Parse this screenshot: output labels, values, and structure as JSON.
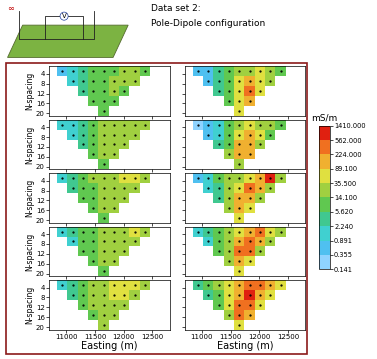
{
  "header": {
    "title": "Data set 2:",
    "subtitle": "Pole-Dipole configuration",
    "icon_labels": [
      "∞",
      "V"
    ]
  },
  "chart_data": {
    "type": "heatmap",
    "x_label": "Easting (m)",
    "y_label": "N-spacing",
    "xlim": [
      10700,
      12800
    ],
    "xticks": [
      11000,
      11500,
      12000,
      12500
    ],
    "ylim": [
      21,
      1
    ],
    "yticks": [
      4,
      8,
      12,
      16,
      20
    ],
    "x_edges": [
      10840,
      11020,
      11200,
      11380,
      11560,
      11740,
      11920,
      12100,
      12280,
      12460
    ],
    "y_edges": [
      1,
      5,
      9,
      13,
      17,
      21
    ],
    "panels": [
      {
        "cells": [
          [
            0.5,
            1.5,
            4,
            8,
            10,
            12,
            20,
            15,
            12
          ],
          [
            null,
            1,
            3,
            7,
            10,
            15,
            20,
            15,
            null
          ],
          [
            null,
            null,
            4,
            8,
            12,
            15,
            12,
            null,
            null
          ],
          [
            null,
            null,
            null,
            8,
            12,
            10,
            null,
            null,
            null
          ],
          [
            null,
            null,
            null,
            null,
            10,
            null,
            null,
            null,
            null
          ]
        ]
      },
      {
        "cells": [
          [
            0.4,
            0.8,
            3,
            8,
            15,
            30,
            40,
            20,
            10
          ],
          [
            null,
            0.6,
            3,
            10,
            40,
            200,
            60,
            15,
            null
          ],
          [
            null,
            null,
            3,
            10,
            80,
            300,
            40,
            null,
            null
          ],
          [
            null,
            null,
            null,
            10,
            80,
            200,
            null,
            null,
            null
          ],
          [
            null,
            null,
            null,
            null,
            40,
            null,
            null,
            null,
            null
          ]
        ]
      },
      {
        "cells": [
          [
            1,
            2,
            5,
            10,
            15,
            20,
            25,
            30,
            20
          ],
          [
            null,
            1.5,
            4,
            10,
            15,
            20,
            25,
            20,
            null
          ],
          [
            null,
            null,
            5,
            10,
            15,
            20,
            15,
            null,
            null
          ],
          [
            null,
            null,
            null,
            10,
            15,
            15,
            null,
            null,
            null
          ],
          [
            null,
            null,
            null,
            null,
            12,
            null,
            null,
            null,
            null
          ]
        ]
      },
      {
        "cells": [
          [
            0.3,
            0.5,
            2,
            8,
            20,
            40,
            30,
            15,
            10
          ],
          [
            null,
            0.4,
            2,
            10,
            50,
            150,
            40,
            12,
            null
          ],
          [
            null,
            null,
            3,
            12,
            150,
            200,
            30,
            null,
            null
          ],
          [
            null,
            null,
            null,
            15,
            100,
            100,
            null,
            null,
            null
          ],
          [
            null,
            null,
            null,
            null,
            30,
            null,
            null,
            null,
            null
          ]
        ]
      },
      {
        "cells": [
          [
            2,
            5,
            10,
            15,
            25,
            30,
            40,
            80,
            30
          ],
          [
            null,
            3,
            8,
            12,
            20,
            30,
            35,
            25,
            null
          ],
          [
            null,
            null,
            6,
            12,
            20,
            25,
            20,
            null,
            null
          ],
          [
            null,
            null,
            null,
            10,
            15,
            15,
            null,
            null,
            null
          ],
          [
            null,
            null,
            null,
            null,
            12,
            null,
            null,
            null,
            null
          ]
        ]
      },
      {
        "cells": [
          [
            0.8,
            2,
            6,
            15,
            30,
            60,
            200,
            600,
            30
          ],
          [
            null,
            1.5,
            5,
            15,
            80,
            300,
            100,
            20,
            null
          ],
          [
            null,
            null,
            5,
            30,
            200,
            200,
            25,
            null,
            null
          ],
          [
            null,
            null,
            null,
            20,
            150,
            60,
            null,
            null,
            null
          ],
          [
            null,
            null,
            null,
            null,
            40,
            null,
            null,
            null,
            null
          ]
        ]
      },
      {
        "cells": [
          [
            1.5,
            3,
            8,
            12,
            20,
            30,
            35,
            40,
            25
          ],
          [
            null,
            2,
            6,
            10,
            20,
            30,
            30,
            20,
            null
          ],
          [
            null,
            null,
            6,
            12,
            20,
            25,
            20,
            null,
            null
          ],
          [
            null,
            null,
            null,
            10,
            15,
            15,
            null,
            null,
            null
          ],
          [
            null,
            null,
            null,
            null,
            12,
            null,
            null,
            null,
            null
          ]
        ]
      },
      {
        "cells": [
          [
            1,
            3,
            8,
            20,
            40,
            100,
            300,
            40,
            15
          ],
          [
            null,
            2,
            8,
            20,
            100,
            400,
            100,
            20,
            null
          ],
          [
            null,
            null,
            6,
            30,
            300,
            300,
            30,
            null,
            null
          ],
          [
            null,
            null,
            null,
            20,
            200,
            80,
            null,
            null,
            null
          ],
          [
            null,
            null,
            null,
            null,
            40,
            null,
            null,
            null,
            null
          ]
        ]
      },
      {
        "cells": [
          [
            2,
            5,
            10,
            20,
            30,
            40,
            80,
            60,
            30
          ],
          [
            null,
            3,
            8,
            15,
            25,
            40,
            40,
            30,
            null
          ],
          [
            null,
            null,
            8,
            15,
            25,
            30,
            20,
            null,
            null
          ],
          [
            null,
            null,
            null,
            12,
            20,
            15,
            null,
            null,
            null
          ],
          [
            null,
            null,
            null,
            null,
            15,
            null,
            null,
            null,
            null
          ]
        ]
      },
      {
        "cells": [
          [
            3,
            8,
            20,
            40,
            100,
            300,
            500,
            200,
            40
          ],
          [
            null,
            5,
            12,
            40,
            150,
            600,
            200,
            40,
            null
          ],
          [
            null,
            null,
            10,
            50,
            400,
            300,
            40,
            null,
            null
          ],
          [
            null,
            null,
            null,
            30,
            300,
            100,
            null,
            null,
            null
          ],
          [
            null,
            null,
            null,
            null,
            60,
            null,
            null,
            null,
            null
          ]
        ]
      }
    ],
    "colorbar": {
      "label": "mS/m",
      "ticks": [
        {
          "value": 0.141,
          "label": "0.141"
        },
        {
          "value": 0.355,
          "label": "0.355"
        },
        {
          "value": 0.891,
          "label": "0.891"
        },
        {
          "value": 2.24,
          "label": "2.240"
        },
        {
          "value": 5.62,
          "label": "5.620"
        },
        {
          "value": 14.1,
          "label": "14.100"
        },
        {
          "value": 35.5,
          "label": "35.500"
        },
        {
          "value": 89.1,
          "label": "89.100"
        },
        {
          "value": 224,
          "label": "224.000"
        },
        {
          "value": 562,
          "label": "562.000"
        },
        {
          "value": 1410,
          "label": "1410.000"
        }
      ],
      "colors": [
        "#8fd3ff",
        "#4fc0f0",
        "#40d0d0",
        "#40c890",
        "#60c850",
        "#a0d040",
        "#e0e040",
        "#f0b030",
        "#f07020",
        "#e02010"
      ]
    }
  }
}
